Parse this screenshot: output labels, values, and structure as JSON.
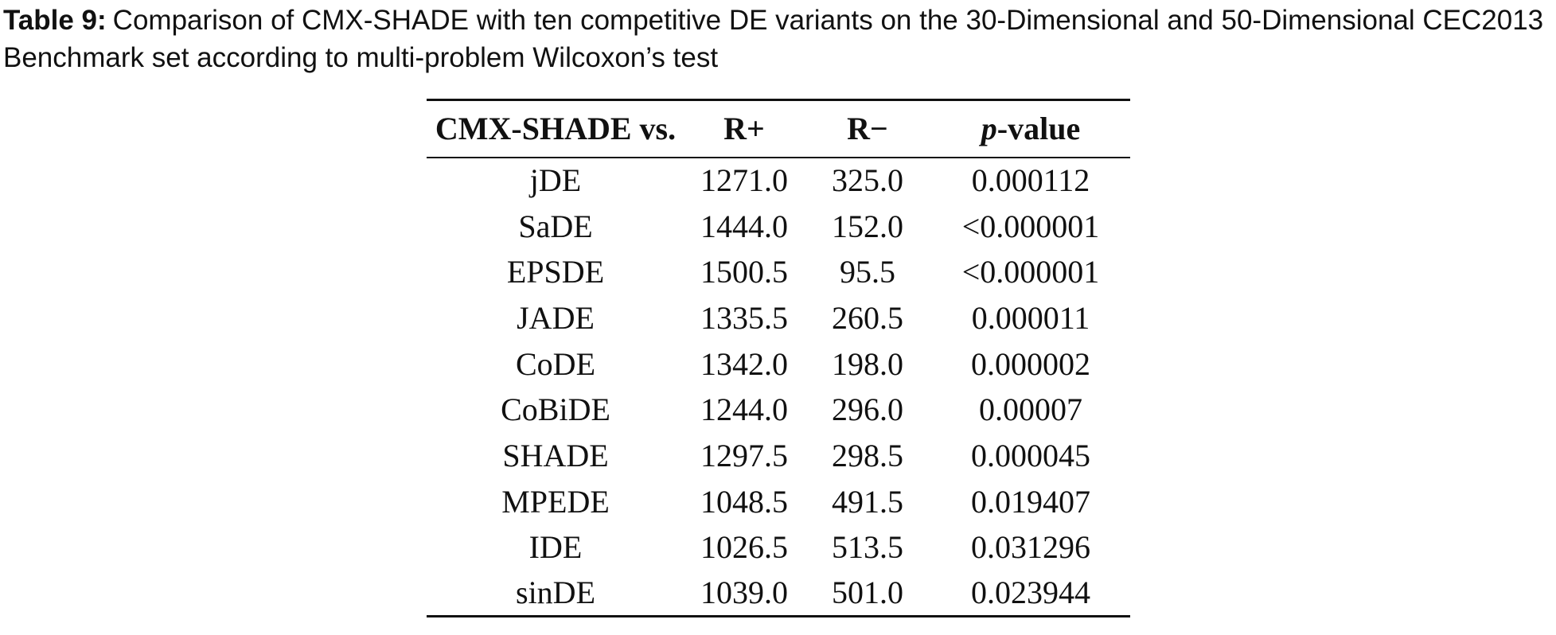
{
  "caption": {
    "label": "Table 9:",
    "text": "Comparison of CMX-SHADE with ten competitive DE variants on the 30-Dimensional and 50-Dimensional CEC2013 Benchmark set according to multi-problem Wilcoxon’s test"
  },
  "table": {
    "header": [
      "CMX-SHADE vs.",
      "R+",
      "R−",
      "p-value"
    ],
    "rows": [
      [
        "jDE",
        "1271.0",
        "325.0",
        "0.000112"
      ],
      [
        "SaDE",
        "1444.0",
        "152.0",
        "<0.000001"
      ],
      [
        "EPSDE",
        "1500.5",
        "95.5",
        "<0.000001"
      ],
      [
        "JADE",
        "1335.5",
        "260.5",
        "0.000011"
      ],
      [
        "CoDE",
        "1342.0",
        "198.0",
        "0.000002"
      ],
      [
        "CoBiDE",
        "1244.0",
        "296.0",
        "0.00007"
      ],
      [
        "SHADE",
        "1297.5",
        "298.5",
        "0.000045"
      ],
      [
        "MPEDE",
        "1048.5",
        "491.5",
        "0.019407"
      ],
      [
        "IDE",
        "1026.5",
        "513.5",
        "0.031296"
      ],
      [
        "sinDE",
        "1039.0",
        "501.0",
        "0.023944"
      ]
    ]
  }
}
